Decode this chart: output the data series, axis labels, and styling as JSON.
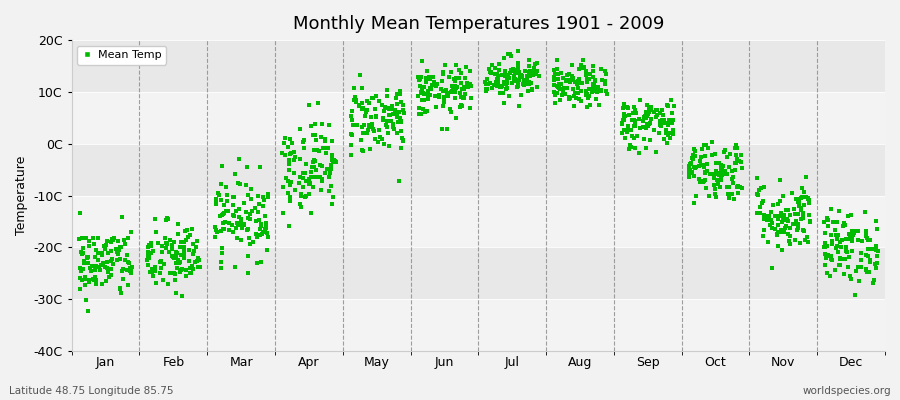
{
  "title": "Monthly Mean Temperatures 1901 - 2009",
  "ylabel": "Temperature",
  "xlabel_bottom_left": "Latitude 48.75 Longitude 85.75",
  "xlabel_bottom_right": "worldspecies.org",
  "ylim": [
    -40,
    20
  ],
  "yticks": [
    -40,
    -30,
    -20,
    -10,
    0,
    10,
    20
  ],
  "ytick_labels": [
    "-40C",
    "-30C",
    "-20C",
    "-10C",
    "0C",
    "10C",
    "20C"
  ],
  "months": [
    "Jan",
    "Feb",
    "Mar",
    "Apr",
    "May",
    "Jun",
    "Jul",
    "Aug",
    "Sep",
    "Oct",
    "Nov",
    "Dec"
  ],
  "dot_color": "#00bb00",
  "bg_color": "#f2f2f2",
  "plot_bg_color": "#e8e8e8",
  "legend_label": "Mean Temp",
  "monthly_mean_temps": [
    -23,
    -22,
    -14,
    -4,
    5,
    10,
    13,
    11,
    4,
    -5,
    -14,
    -20
  ],
  "monthly_std_temps": [
    3.5,
    3.5,
    4.0,
    4.5,
    3.5,
    2.5,
    2.0,
    2.0,
    2.5,
    3.0,
    3.5,
    3.5
  ],
  "n_years": 109
}
